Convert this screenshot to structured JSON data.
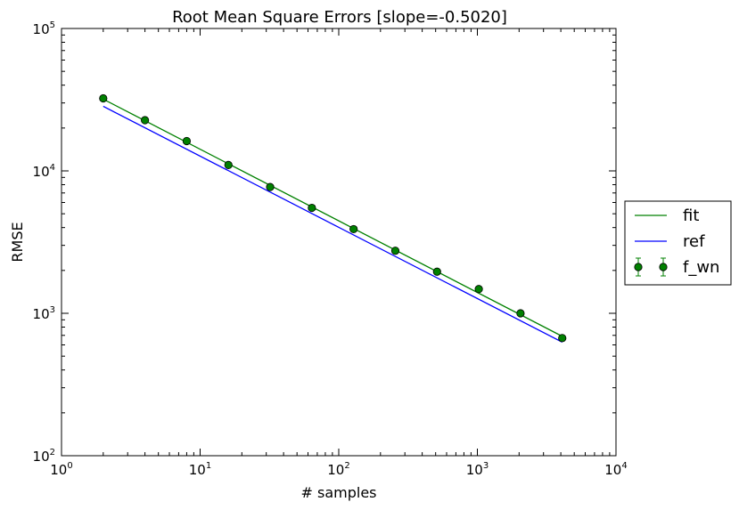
{
  "chart_data": {
    "type": "line",
    "title": "Root Mean Square Errors [slope=-0.5020]",
    "xlabel": "# samples",
    "ylabel": "RMSE",
    "xscale": "log",
    "yscale": "log",
    "xlim": [
      1,
      10000
    ],
    "ylim": [
      100,
      100000
    ],
    "x_tick_labels": [
      {
        "value": 1,
        "base": "10",
        "exp": "0"
      },
      {
        "value": 10,
        "base": "10",
        "exp": "1"
      },
      {
        "value": 100,
        "base": "10",
        "exp": "2"
      },
      {
        "value": 1000,
        "base": "10",
        "exp": "3"
      },
      {
        "value": 10000,
        "base": "10",
        "exp": "4"
      }
    ],
    "y_tick_labels": [
      {
        "value": 100,
        "base": "10",
        "exp": "2"
      },
      {
        "value": 1000,
        "base": "10",
        "exp": "3"
      },
      {
        "value": 10000,
        "base": "10",
        "exp": "4"
      },
      {
        "value": 100000,
        "base": "10",
        "exp": "5"
      }
    ],
    "legend_placement": "outside-right",
    "series": [
      {
        "name": "fit",
        "kind": "line",
        "color": "#008000",
        "x": [
          2,
          4096
        ],
        "y": [
          31900,
          689
        ]
      },
      {
        "name": "ref",
        "kind": "line",
        "color": "#0000ff",
        "x": [
          2,
          4096
        ],
        "y": [
          28400,
          627
        ]
      },
      {
        "name": "f_wn",
        "kind": "errorbar",
        "color": "#008000",
        "x": [
          2,
          4,
          8,
          16,
          32,
          64,
          128,
          256,
          512,
          1024,
          2048,
          4096
        ],
        "y": [
          32300,
          22700,
          16200,
          11000,
          7700,
          5500,
          3900,
          2750,
          1960,
          1480,
          1000,
          670
        ]
      }
    ]
  }
}
